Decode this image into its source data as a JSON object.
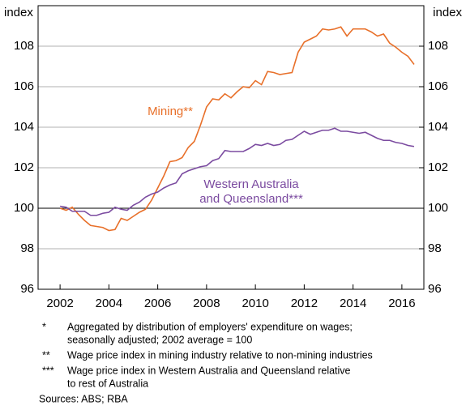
{
  "chart_data": {
    "type": "line",
    "y_label": "index",
    "y2_label": "index",
    "x": [
      2002,
      2002.25,
      2002.5,
      2002.75,
      2003,
      2003.25,
      2003.5,
      2003.75,
      2004,
      2004.25,
      2004.5,
      2004.75,
      2005,
      2005.25,
      2005.5,
      2005.75,
      2006,
      2006.25,
      2006.5,
      2006.75,
      2007,
      2007.25,
      2007.5,
      2007.75,
      2008,
      2008.25,
      2008.5,
      2008.75,
      2009,
      2009.25,
      2009.5,
      2009.75,
      2010,
      2010.25,
      2010.5,
      2010.75,
      2011,
      2011.25,
      2011.5,
      2011.75,
      2012,
      2012.25,
      2012.5,
      2012.75,
      2013,
      2013.25,
      2013.5,
      2013.75,
      2014,
      2014.25,
      2014.5,
      2014.75,
      2015,
      2015.25,
      2015.5,
      2015.75,
      2016,
      2016.25,
      2016.5
    ],
    "series": [
      {
        "name": "Mining**",
        "color": "#e8702a",
        "values": [
          100,
          99.9,
          100.05,
          99.7,
          99.4,
          99.15,
          99.1,
          99.05,
          98.9,
          98.95,
          99.5,
          99.4,
          99.6,
          99.8,
          99.95,
          100.4,
          101.0,
          101.6,
          102.3,
          102.35,
          102.5,
          103.0,
          103.3,
          104.1,
          105.0,
          105.4,
          105.35,
          105.65,
          105.45,
          105.75,
          106.0,
          105.95,
          106.3,
          106.1,
          106.75,
          106.7,
          106.6,
          106.65,
          106.7,
          107.7,
          108.2,
          108.35,
          108.5,
          108.85,
          108.8,
          108.85,
          108.95,
          108.5,
          108.85,
          108.85,
          108.85,
          108.7,
          108.5,
          108.6,
          108.15,
          107.95,
          107.7,
          107.5,
          107.1
        ]
      },
      {
        "name": "Western Australia\nand Queensland***",
        "color": "#7b4ba0",
        "values": [
          100.1,
          100.05,
          99.85,
          99.85,
          99.85,
          99.65,
          99.65,
          99.75,
          99.8,
          100.05,
          99.95,
          99.9,
          100.15,
          100.3,
          100.55,
          100.7,
          100.8,
          101.0,
          101.15,
          101.25,
          101.7,
          101.85,
          101.95,
          102.05,
          102.1,
          102.35,
          102.45,
          102.85,
          102.8,
          102.8,
          102.8,
          102.95,
          103.15,
          103.1,
          103.2,
          103.1,
          103.15,
          103.35,
          103.4,
          103.6,
          103.8,
          103.65,
          103.75,
          103.85,
          103.85,
          103.95,
          103.8,
          103.8,
          103.75,
          103.7,
          103.75,
          103.6,
          103.45,
          103.35,
          103.35,
          103.25,
          103.2,
          103.1,
          103.05
        ]
      }
    ],
    "xlim": [
      2001.1,
      2016.9
    ],
    "xticks": [
      2002,
      2004,
      2006,
      2008,
      2010,
      2012,
      2014,
      2016
    ],
    "ylim": [
      96,
      110
    ],
    "yticks": [
      96,
      98,
      100,
      102,
      104,
      106,
      108
    ],
    "y2lim": [
      96,
      110
    ],
    "y2ticks": [
      96,
      98,
      100,
      102,
      104,
      106,
      108
    ],
    "grid": true,
    "reference_line": 100,
    "notes": [
      {
        "marker": "*",
        "lines": [
          "Aggregated by distribution of employers' expenditure on wages;",
          "seasonally adjusted; 2002 average = 100"
        ]
      },
      {
        "marker": "**",
        "lines": [
          "Wage price index in mining industry relative to non-mining industries"
        ]
      },
      {
        "marker": "***",
        "lines": [
          "Wage price index in Western Australia and Queensland relative",
          "to rest of Australia"
        ]
      }
    ],
    "source": "Sources: ABS; RBA"
  }
}
